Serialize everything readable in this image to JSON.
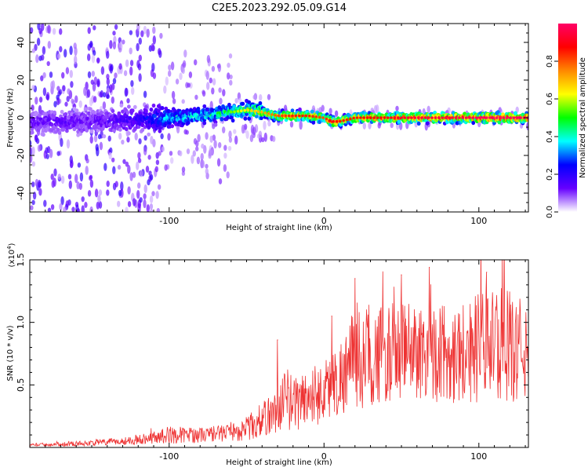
{
  "title": "C2E5.2023.292.05.09.G14",
  "chart_data": [
    {
      "type": "heatmap",
      "title": "C2E5.2023.292.05.09.G14",
      "xlabel": "Height of straight line (km)",
      "ylabel": "Frequency (Hz)",
      "xlim": [
        -190,
        132
      ],
      "ylim": [
        -50,
        50
      ],
      "x_ticks": [
        -100,
        0,
        100
      ],
      "x_tick_labels": [
        "-100",
        "0",
        "100"
      ],
      "y_ticks": [
        -40,
        -20,
        0,
        20,
        40
      ],
      "y_tick_labels": [
        "-40",
        "-20",
        "0",
        "20",
        "40"
      ],
      "colorbar": {
        "label": "Normalized spectral amplitude",
        "range": [
          0,
          1
        ],
        "ticks": [
          0.0,
          0.2,
          0.4,
          0.6,
          0.8
        ],
        "tick_labels": [
          "0.0",
          "0.2",
          "0.4",
          "0.6",
          "0.8"
        ],
        "colors": [
          "#ffffff",
          "#6600ff",
          "#0000ff",
          "#00ffff",
          "#00ff00",
          "#ffff00",
          "#ff8800",
          "#ff0000",
          "#ff0066"
        ]
      },
      "ridge": {
        "description_points_x": [
          -190,
          -150,
          -120,
          -100,
          -80,
          -60,
          -50,
          -40,
          -30,
          -20,
          -10,
          0,
          5,
          10,
          20,
          40,
          60,
          80,
          100,
          132
        ],
        "center_freq": [
          -2,
          -2,
          -1,
          0,
          1,
          3,
          4,
          3,
          1,
          1,
          1,
          0,
          -2,
          -2,
          0,
          0,
          0,
          0,
          0,
          0
        ],
        "amplitude": [
          0.15,
          0.15,
          0.2,
          0.4,
          0.45,
          0.5,
          0.6,
          0.65,
          0.75,
          0.8,
          0.8,
          0.75,
          0.85,
          0.8,
          0.8,
          0.85,
          0.9,
          0.9,
          0.95,
          0.95
        ]
      }
    },
    {
      "type": "line",
      "xlabel": "Height of straight line (km)",
      "ylabel": "SNR (10 * v/v)",
      "y_multiplier_label": "(x10",
      "y_multiplier_exp": "4",
      "xlim": [
        -190,
        132
      ],
      "ylim": [
        0,
        1.5
      ],
      "x_ticks": [
        -100,
        0,
        100
      ],
      "x_tick_labels": [
        "-100",
        "0",
        "100"
      ],
      "y_ticks": [
        0.5,
        1.0,
        1.5
      ],
      "y_tick_labels": [
        "0.5",
        "1.0",
        "1.5"
      ],
      "color": "#ee3333",
      "envelope": {
        "x": [
          -190,
          -160,
          -130,
          -110,
          -100,
          -80,
          -60,
          -50,
          -40,
          -30,
          -25,
          -20,
          -10,
          0,
          10,
          20,
          40,
          60,
          80,
          100,
          110,
          120,
          132
        ],
        "mean": [
          0.02,
          0.03,
          0.05,
          0.08,
          0.1,
          0.1,
          0.12,
          0.15,
          0.22,
          0.3,
          0.4,
          0.35,
          0.4,
          0.45,
          0.55,
          0.7,
          0.75,
          0.78,
          0.75,
          0.8,
          0.85,
          0.8,
          0.75
        ],
        "spread": [
          0.01,
          0.02,
          0.03,
          0.05,
          0.07,
          0.06,
          0.07,
          0.1,
          0.14,
          0.18,
          0.25,
          0.22,
          0.25,
          0.25,
          0.3,
          0.4,
          0.4,
          0.4,
          0.4,
          0.45,
          0.45,
          0.45,
          0.4
        ]
      },
      "peaks": [
        {
          "x": -30,
          "y": 0.86
        },
        {
          "x": 5,
          "y": 1.05
        },
        {
          "x": 20,
          "y": 1.35
        },
        {
          "x": 50,
          "y": 1.38
        },
        {
          "x": 68,
          "y": 1.44
        },
        {
          "x": 105,
          "y": 1.4
        },
        {
          "x": 115,
          "y": 1.52
        }
      ]
    }
  ]
}
